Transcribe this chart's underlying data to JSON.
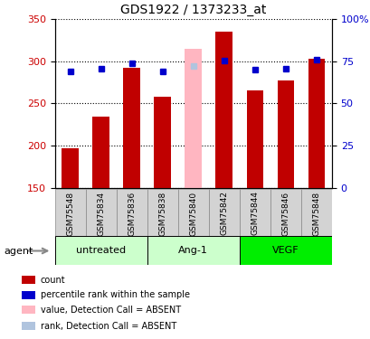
{
  "title": "GDS1922 / 1373233_at",
  "samples": [
    "GSM75548",
    "GSM75834",
    "GSM75836",
    "GSM75838",
    "GSM75840",
    "GSM75842",
    "GSM75844",
    "GSM75846",
    "GSM75848"
  ],
  "count_values": [
    197,
    234,
    292,
    258,
    null,
    335,
    265,
    277,
    303
  ],
  "count_absent": [
    null,
    null,
    null,
    null,
    314,
    null,
    null,
    null,
    null
  ],
  "rank_values": [
    69.0,
    70.5,
    73.5,
    69.0,
    null,
    75.5,
    70.0,
    70.5,
    76.0
  ],
  "rank_absent": [
    null,
    null,
    null,
    null,
    72.0,
    null,
    null,
    null,
    null
  ],
  "ylim_left": [
    150,
    350
  ],
  "ylim_right": [
    0,
    100
  ],
  "yticks_left": [
    150,
    200,
    250,
    300,
    350
  ],
  "yticks_right": [
    0,
    25,
    50,
    75,
    100
  ],
  "yticklabels_right": [
    "0",
    "25",
    "50",
    "75",
    "100%"
  ],
  "group_labels": [
    "untreated",
    "Ang-1",
    "VEGF"
  ],
  "group_colors": [
    "#CCFFCC",
    "#CCFFCC",
    "#00EE00"
  ],
  "group_sizes": [
    3,
    3,
    3
  ],
  "bar_color_present": "#C00000",
  "bar_color_absent": "#FFB6C1",
  "rank_color_present": "#0000CC",
  "rank_color_absent": "#B0C4DE",
  "bar_width": 0.55,
  "agent_label": "agent",
  "grid_color": "#000000",
  "tick_label_color_left": "#CC0000",
  "tick_label_color_right": "#0000CC",
  "sample_box_color": "#D3D3D3",
  "legend_items": [
    {
      "color": "#C00000",
      "label": "count"
    },
    {
      "color": "#0000CC",
      "label": "percentile rank within the sample"
    },
    {
      "color": "#FFB6C1",
      "label": "value, Detection Call = ABSENT"
    },
    {
      "color": "#B0C4DE",
      "label": "rank, Detection Call = ABSENT"
    }
  ]
}
